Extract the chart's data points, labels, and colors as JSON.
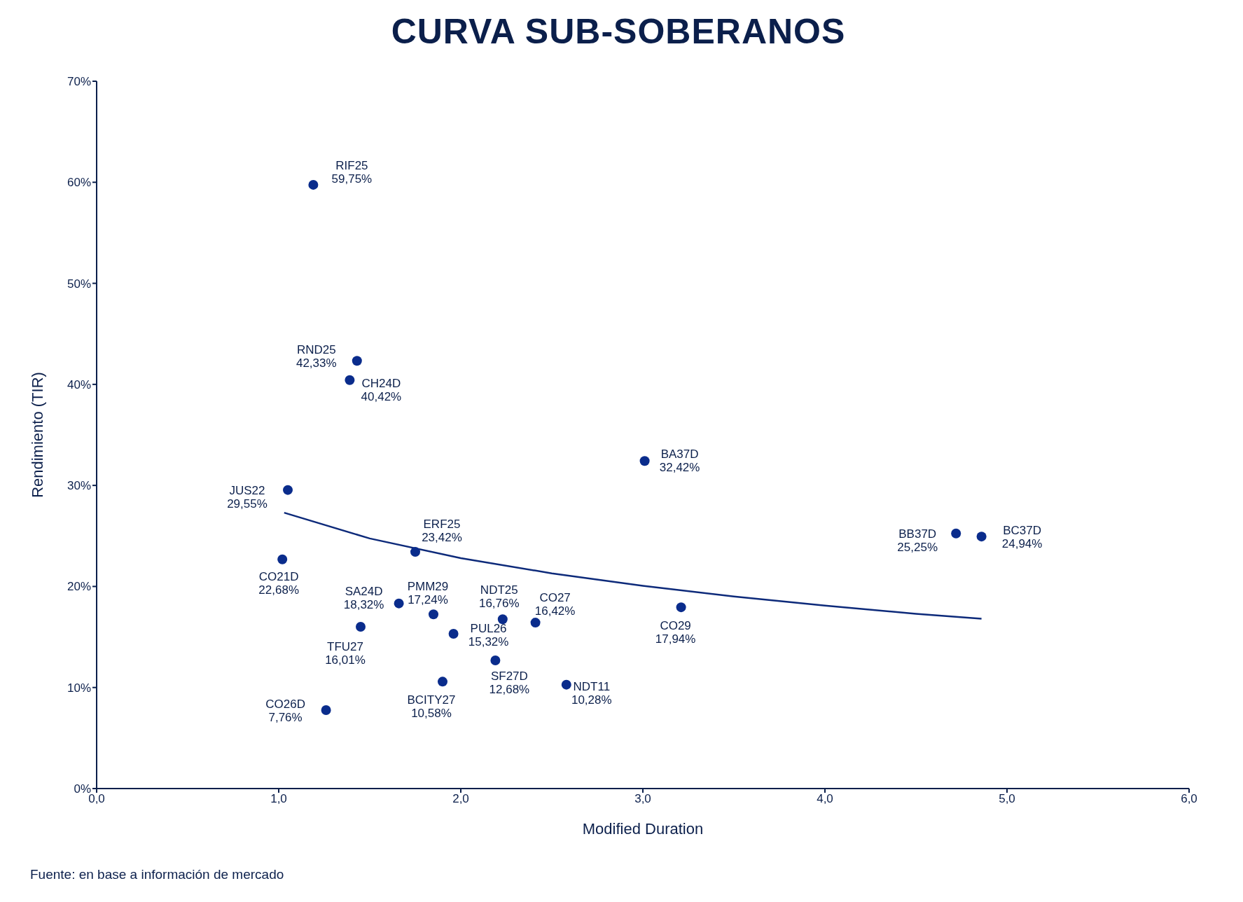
{
  "chart_data": {
    "type": "scatter",
    "title": "CURVA SUB-SOBERANOS",
    "xlabel": "Modified Duration",
    "ylabel": "Rendimiento (TIR)",
    "annotations": [
      {
        "text": "RIF25",
        "x": 1.19,
        "y": 59.75
      },
      {
        "text": "RND25",
        "x": 1.43,
        "y": 42.33
      },
      {
        "text": "CH24D",
        "x": 1.39,
        "y": 40.42
      },
      {
        "text": "JUS22",
        "x": 1.05,
        "y": 29.55
      },
      {
        "text": "CO21D",
        "x": 1.02,
        "y": 22.68
      },
      {
        "text": "ERF25",
        "x": 1.75,
        "y": 23.42
      },
      {
        "text": "BA37D",
        "x": 3.01,
        "y": 32.42
      },
      {
        "text": "BB37D",
        "x": 4.72,
        "y": 25.25
      },
      {
        "text": "BC37D",
        "x": 4.86,
        "y": 24.94
      },
      {
        "text": "SA24D",
        "x": 1.66,
        "y": 18.32
      },
      {
        "text": "PMM29",
        "x": 1.85,
        "y": 17.24
      },
      {
        "text": "PUL26",
        "x": 1.96,
        "y": 15.32
      },
      {
        "text": "NDT25",
        "x": 2.23,
        "y": 16.76
      },
      {
        "text": "CO27",
        "x": 2.41,
        "y": 16.42
      },
      {
        "text": "CO29",
        "x": 3.21,
        "y": 17.94
      },
      {
        "text": "TFU27",
        "x": 1.45,
        "y": 16.01
      },
      {
        "text": "SF27D",
        "x": 2.19,
        "y": 12.68
      },
      {
        "text": "BCITY27",
        "x": 1.9,
        "y": 10.58
      },
      {
        "text": "NDT11",
        "x": 2.58,
        "y": 10.28
      },
      {
        "text": "CO26D",
        "x": 1.26,
        "y": 7.76
      },
      "Fuente: en base a información de mercado"
    ],
    "series": [
      {
        "color": "#0a2c8c",
        "marker": "circle",
        "x": [
          1.19,
          1.43,
          1.39,
          1.05,
          1.02,
          1.75,
          3.01,
          4.72,
          4.86,
          1.66,
          1.85,
          1.96,
          2.23,
          2.41,
          3.21,
          1.45,
          2.19,
          1.9,
          2.58,
          1.26
        ],
        "values": [
          59.75,
          42.33,
          40.42,
          29.55,
          22.68,
          23.42,
          32.42,
          25.25,
          24.94,
          18.32,
          17.24,
          15.32,
          16.76,
          16.42,
          17.94,
          16.01,
          12.68,
          10.58,
          10.28,
          7.76
        ],
        "value_labels": [
          "59,75%",
          "42,33%",
          "40,42%",
          "29,55%",
          "22,68%",
          "23,42%",
          "32,42%",
          "25,25%",
          "24,94%",
          "18,32%",
          "17,24%",
          "15,32%",
          "16,76%",
          "16,42%",
          "17,94%",
          "16,01%",
          "12,68%",
          "10,58%",
          "10,28%",
          "7,76%"
        ]
      },
      {
        "type": "line",
        "color": "#0d2a7a",
        "marker": "none",
        "x": [
          1.03,
          1.5,
          2,
          2.5,
          3,
          3.5,
          4,
          4.5,
          4.86
        ],
        "values": [
          27.3,
          24.75,
          22.8,
          21.3,
          20.06,
          19.0,
          18.1,
          17.3,
          16.8
        ]
      }
    ],
    "xlim": [
      0,
      6
    ],
    "xticks": [
      {
        "value": 0,
        "label": "0,0"
      },
      {
        "value": 1,
        "label": "1,0"
      },
      {
        "value": 2,
        "label": "2,0"
      },
      {
        "value": 3,
        "label": "3,0"
      },
      {
        "value": 4,
        "label": "4,0"
      },
      {
        "value": 5,
        "label": "5,0"
      },
      {
        "value": 6,
        "label": "6,0"
      }
    ],
    "ylim": [
      0,
      70
    ],
    "yticks": [
      {
        "value": 0,
        "label": "0%"
      },
      {
        "value": 10,
        "label": "10%"
      },
      {
        "value": 20,
        "label": "20%"
      },
      {
        "value": 30,
        "label": "30%"
      },
      {
        "value": 40,
        "label": "40%"
      },
      {
        "value": 50,
        "label": "50%"
      },
      {
        "value": 60,
        "label": "60%"
      },
      {
        "value": 70,
        "label": "70%"
      }
    ],
    "grid": false,
    "legend": false
  }
}
